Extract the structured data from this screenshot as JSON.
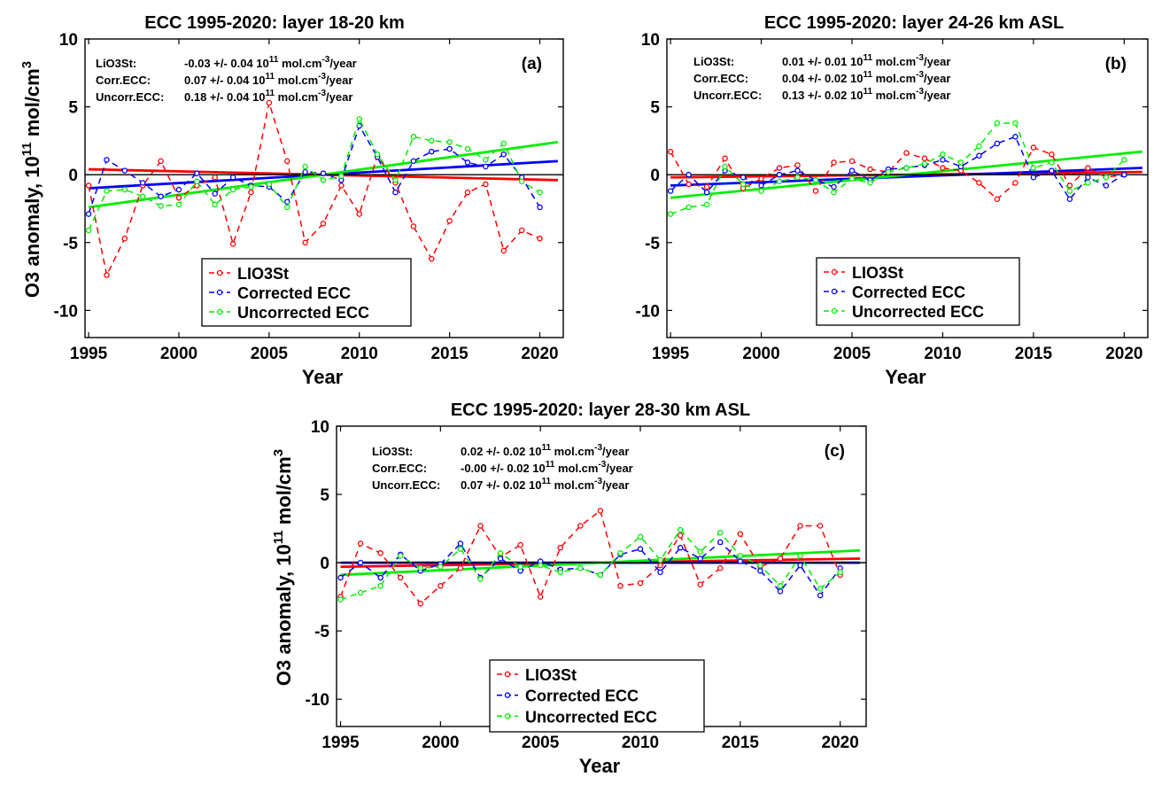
{
  "chart_data": [
    {
      "type": "line",
      "panel_label": "(a)",
      "title": "ECC 1995-2020: layer 18-20 km",
      "xlabel": "Year",
      "ylabel_main": "O3 anomaly, 10",
      "ylabel_sup": "11",
      "ylabel_unit": " mol/cm",
      "ylabel_unit_sup": "3",
      "xlim": [
        1994.8,
        2021.3
      ],
      "ylim": [
        -12,
        10
      ],
      "xticks": [
        "1995",
        "2000",
        "2005",
        "2010",
        "2015",
        "2020"
      ],
      "yticks": [
        "10",
        "5",
        "0",
        "-5",
        "-10"
      ],
      "stats": [
        {
          "name": "LiO3St:",
          "value": "-0.03 +/- 0.04 10",
          "sup": "11",
          "unit": " mol.cm",
          "unit_sup": "-3",
          "per": "/year"
        },
        {
          "name": "Corr.ECC:",
          "value": "0.07 +/- 0.04 10",
          "sup": "11",
          "unit": " mol.cm",
          "unit_sup": "-3",
          "per": "/year"
        },
        {
          "name": "Uncorr.ECC:",
          "value": "0.18 +/- 0.04 10",
          "sup": "11",
          "unit": " mol.cm",
          "unit_sup": "-3",
          "per": "/year"
        }
      ],
      "x": [
        1995,
        1996,
        1997,
        1998,
        1999,
        2000,
        2001,
        2002,
        2003,
        2004,
        2005,
        2006,
        2007,
        2008,
        2009,
        2010,
        2011,
        2012,
        2013,
        2014,
        2015,
        2016,
        2017,
        2018,
        2019,
        2020
      ],
      "series": [
        {
          "name": "LIO3St",
          "color": "#ff0000",
          "values": [
            -0.8,
            -7.4,
            -4.7,
            -0.8,
            1.0,
            -1.7,
            -0.8,
            -0.2,
            -5.1,
            -1.3,
            5.3,
            1.0,
            -5.0,
            -3.6,
            -0.8,
            -2.9,
            1.4,
            -0.6,
            -3.8,
            -6.2,
            -3.4,
            -1.3,
            -0.7,
            -5.6,
            -4.1,
            -4.7
          ],
          "trend": [
            0.4,
            -0.4
          ]
        },
        {
          "name": "Corrected ECC",
          "color": "#0000ff",
          "values": [
            -2.9,
            1.1,
            0.3,
            -0.6,
            -1.6,
            -1.1,
            0.1,
            -1.4,
            -0.2,
            -0.8,
            -0.9,
            -2.0,
            0.2,
            0.1,
            -0.4,
            3.6,
            1.3,
            -1.3,
            1.0,
            1.7,
            1.9,
            0.9,
            0.6,
            1.5,
            -0.2,
            -2.4
          ],
          "trend": [
            -1.0,
            1.0
          ]
        },
        {
          "name": "Uncorrected ECC",
          "color": "#00ee00",
          "values": [
            -4.1,
            -1.2,
            -1.1,
            -1.6,
            -2.3,
            -2.2,
            -0.5,
            -2.2,
            -1.1,
            -0.9,
            -0.7,
            -2.4,
            0.6,
            -0.4,
            -0.1,
            4.1,
            1.5,
            -0.4,
            2.8,
            2.5,
            2.4,
            1.9,
            1.1,
            2.3,
            -0.5,
            -1.3
          ],
          "trend": [
            -2.4,
            2.4
          ]
        }
      ]
    },
    {
      "type": "line",
      "panel_label": "(b)",
      "title": "ECC 1995-2020: layer 24-26 km ASL",
      "xlabel": "Year",
      "xlim": [
        1994.8,
        2021.3
      ],
      "ylim": [
        -12,
        10
      ],
      "xticks": [
        "1995",
        "2000",
        "2005",
        "2010",
        "2015",
        "2020"
      ],
      "yticks": [
        "10",
        "5",
        "0",
        "-5",
        "-10"
      ],
      "stats": [
        {
          "name": "LiO3St:",
          "value": "0.01 +/- 0.01 10",
          "sup": "11",
          "unit": " mol.cm",
          "unit_sup": "-3",
          "per": "/year"
        },
        {
          "name": "Corr.ECC:",
          "value": "0.04 +/- 0.02 10",
          "sup": "11",
          "unit": " mol.cm",
          "unit_sup": "-3",
          "per": "/year"
        },
        {
          "name": "Uncorr.ECC:",
          "value": "0.13 +/- 0.02 10",
          "sup": "11",
          "unit": " mol.cm",
          "unit_sup": "-3",
          "per": "/year"
        }
      ],
      "x": [
        1995,
        1996,
        1997,
        1998,
        1999,
        2000,
        2001,
        2002,
        2003,
        2004,
        2005,
        2006,
        2007,
        2008,
        2009,
        2010,
        2011,
        2012,
        2013,
        2014,
        2015,
        2016,
        2017,
        2018,
        2019,
        2020
      ],
      "series": [
        {
          "name": "LIO3St",
          "color": "#ff0000",
          "values": [
            1.7,
            -0.7,
            -0.9,
            1.2,
            -1.0,
            -0.3,
            0.5,
            0.7,
            -1.2,
            0.9,
            1.0,
            0.4,
            0.2,
            1.6,
            1.2,
            0.5,
            0.3,
            -0.6,
            -1.8,
            -0.6,
            2.0,
            1.5,
            -0.8,
            0.5,
            -0.2,
            0.0
          ],
          "trend": [
            -0.2,
            0.2
          ]
        },
        {
          "name": "Corrected ECC",
          "color": "#0000ff",
          "values": [
            -1.2,
            0.0,
            -1.3,
            0.3,
            -0.2,
            -0.8,
            0.0,
            0.3,
            -0.4,
            -0.9,
            0.3,
            -0.4,
            0.4,
            0.5,
            0.7,
            1.1,
            0.6,
            1.4,
            2.3,
            2.8,
            -0.2,
            0.3,
            -1.8,
            -0.2,
            -0.8,
            0.0
          ],
          "trend": [
            -0.8,
            0.5
          ]
        },
        {
          "name": "Uncorrected ECC",
          "color": "#00ee00",
          "values": [
            -2.9,
            -2.4,
            -2.2,
            0.6,
            -0.7,
            -1.2,
            -0.5,
            -0.2,
            -0.4,
            -1.3,
            -0.3,
            -0.6,
            0.2,
            0.5,
            0.8,
            1.5,
            0.9,
            2.1,
            3.8,
            3.8,
            0.5,
            0.9,
            -1.2,
            -0.6,
            -0.2,
            1.1
          ],
          "trend": [
            -1.7,
            1.7
          ]
        }
      ]
    },
    {
      "type": "line",
      "panel_label": "(c)",
      "title": "ECC 1995-2020: layer 28-30 km ASL",
      "xlabel": "Year",
      "ylabel_main": "O3 anomaly, 10",
      "ylabel_sup": "11",
      "ylabel_unit": " mol/cm",
      "ylabel_unit_sup": "3",
      "xlim": [
        1994.8,
        2021.3
      ],
      "ylim": [
        -12,
        10
      ],
      "xticks": [
        "1995",
        "2000",
        "2005",
        "2010",
        "2015",
        "2020"
      ],
      "yticks": [
        "10",
        "5",
        "0",
        "-5",
        "-10"
      ],
      "stats": [
        {
          "name": "LiO3St:",
          "value": "0.02 +/- 0.02 10",
          "sup": "11",
          "unit": " mol.cm",
          "unit_sup": "-3",
          "per": "/year"
        },
        {
          "name": "Corr.ECC:",
          "value": "-0.00 +/- 0.02 10",
          "sup": "11",
          "unit": " mol.cm",
          "unit_sup": "-3",
          "per": "/year"
        },
        {
          "name": "Uncorr.ECC:",
          "value": "0.07 +/- 0.02 10",
          "sup": "11",
          "unit": " mol.cm",
          "unit_sup": "-3",
          "per": "/year"
        }
      ],
      "x": [
        1995,
        1996,
        1997,
        1998,
        1999,
        2000,
        2001,
        2002,
        2003,
        2004,
        2005,
        2006,
        2007,
        2008,
        2009,
        2010,
        2011,
        2012,
        2013,
        2014,
        2015,
        2016,
        2017,
        2018,
        2019,
        2020
      ],
      "series": [
        {
          "name": "LIO3St",
          "color": "#ff0000",
          "values": [
            -2.5,
            1.4,
            0.7,
            -1.1,
            -3.0,
            -1.7,
            -0.4,
            2.7,
            0.4,
            1.3,
            -2.5,
            1.1,
            2.7,
            3.8,
            -1.7,
            -1.5,
            -0.2,
            2.0,
            -1.6,
            -0.4,
            2.1,
            -0.3,
            0.3,
            2.7,
            2.7,
            -0.9
          ],
          "trend": [
            -0.3,
            0.3
          ]
        },
        {
          "name": "Corrected ECC",
          "color": "#0000ff",
          "values": [
            -1.1,
            0.0,
            -1.1,
            0.6,
            -0.6,
            -0.1,
            1.4,
            -1.1,
            0.3,
            -0.6,
            0.1,
            -0.5,
            -0.4,
            -0.9,
            0.6,
            1.0,
            -0.7,
            1.1,
            0.3,
            1.5,
            0.1,
            -0.6,
            -2.1,
            -0.2,
            -2.4,
            -0.4
          ],
          "trend": [
            0.0,
            0.0
          ]
        },
        {
          "name": "Uncorrected ECC",
          "color": "#00ee00",
          "values": [
            -2.7,
            -2.2,
            -1.7,
            0.5,
            -0.4,
            -0.3,
            1.0,
            -1.2,
            0.7,
            -0.3,
            -0.2,
            -0.7,
            -0.4,
            -0.9,
            0.7,
            1.9,
            0.2,
            2.4,
            0.8,
            2.2,
            0.5,
            -0.2,
            -1.7,
            0.5,
            -1.9,
            -0.7
          ],
          "trend": [
            -0.9,
            0.9
          ]
        }
      ]
    }
  ]
}
